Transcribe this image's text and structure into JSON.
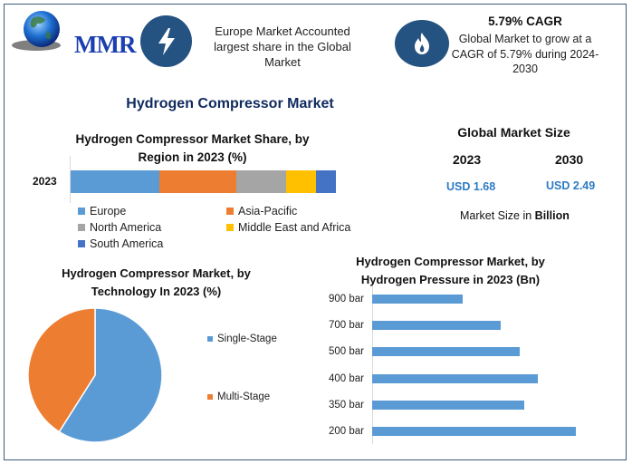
{
  "header": {
    "logo_text": "MMR",
    "highlight_1": {
      "icon": "lightning-bolt-icon",
      "text": "Europe Market Accounted largest share in the Global Market"
    },
    "highlight_2": {
      "icon": "flame-icon",
      "title": "5.79% CAGR",
      "text": "Global Market to grow at a CAGR of 5.79% during 2024-2030"
    }
  },
  "main_title": "Hydrogen Compressor Market",
  "global_market_size": {
    "title": "Global Market Size",
    "years": [
      {
        "year": "2023",
        "value": "USD 1.68"
      },
      {
        "year": "2030",
        "value": "USD 2.49"
      }
    ],
    "unit_prefix": "Market Size in ",
    "unit_bold": "Billion"
  },
  "colors": {
    "europe": "#5b9bd5",
    "asia_pacific": "#ed7d31",
    "north_america": "#a5a5a5",
    "mea": "#ffc000",
    "south_america": "#4472c4",
    "title_navy": "#0f2a5e",
    "usd_blue": "#2d7bc2",
    "icon_navy": "#245281"
  },
  "chart_data": [
    {
      "type": "bar",
      "orientation": "horizontal-stacked",
      "title": "Hydrogen Compressor Market Share, by Region in 2023 (%)",
      "categories": [
        "2023"
      ],
      "series": [
        {
          "name": "Europe",
          "values": [
            33.4
          ],
          "color": "#5b9bd5"
        },
        {
          "name": "Asia-Pacific",
          "values": [
            29.0
          ],
          "color": "#ed7d31"
        },
        {
          "name": "North America",
          "values": [
            18.8
          ],
          "color": "#a5a5a5"
        },
        {
          "name": "Middle East and Africa",
          "values": [
            11.3
          ],
          "color": "#ffc000"
        },
        {
          "name": "South America",
          "values": [
            7.5
          ],
          "color": "#4472c4"
        }
      ],
      "legend_position": "bottom",
      "grid": false
    },
    {
      "type": "pie",
      "title": "Hydrogen Compressor Market, by Technology In 2023 (%)",
      "categories": [
        "Single-Stage",
        "Multi-Stage"
      ],
      "values": [
        59,
        41
      ],
      "colors": [
        "#5b9bd5",
        "#ed7d31"
      ],
      "legend_position": "right"
    },
    {
      "type": "bar",
      "orientation": "horizontal",
      "title": "Hydrogen Compressor Market, by Hydrogen Pressure in 2023 (Bn)",
      "categories": [
        "900 bar",
        "700 bar",
        "500 bar",
        "400 bar",
        "350 bar",
        "200 bar"
      ],
      "values": [
        100,
        142,
        163,
        183,
        168,
        225
      ],
      "value_note": "relative bar lengths (no axis scale shown)",
      "color": "#5b9bd5",
      "grid": false
    }
  ]
}
